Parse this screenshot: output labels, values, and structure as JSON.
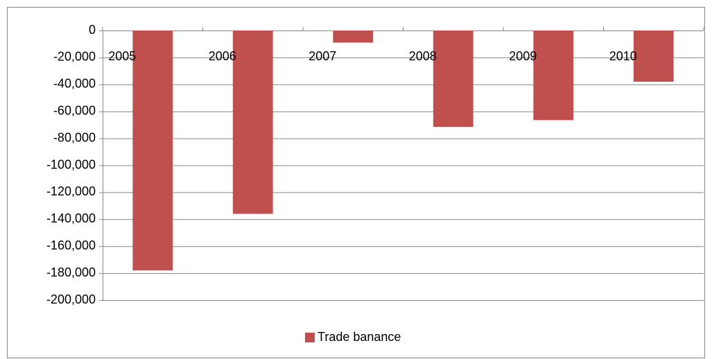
{
  "chart_data": {
    "type": "bar",
    "categories": [
      "2005",
      "2006",
      "2007",
      "2008",
      "2009",
      "2010"
    ],
    "series": [
      {
        "name": "Trade banance",
        "color": "#c0504d",
        "values": [
          -178000,
          -136000,
          -9000,
          -71500,
          -66500,
          -38000
        ]
      }
    ],
    "ylim": [
      -200000,
      0
    ],
    "yticks": [
      0,
      {
        "value": -20000,
        "label": "-20,000"
      },
      {
        "value": -40000,
        "label": "-40,000"
      },
      {
        "value": -60000,
        "label": "-60,000"
      },
      {
        "value": -80000,
        "label": "-80,000"
      },
      {
        "value": -100000,
        "label": "-100,000"
      },
      {
        "value": -120000,
        "label": "-120,000"
      },
      {
        "value": -140000,
        "label": "-140,000"
      },
      {
        "value": -160000,
        "label": "-160,000"
      },
      {
        "value": -180000,
        "label": "-180,000"
      },
      {
        "value": -200000,
        "label": "-200,000"
      }
    ],
    "grid": true,
    "legend": "bottom"
  }
}
